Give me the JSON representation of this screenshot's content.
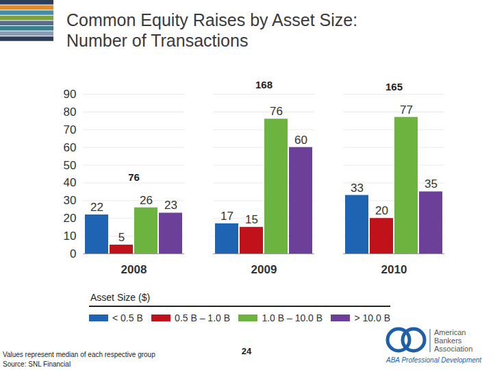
{
  "chart_data": {
    "type": "bar",
    "title": "Common Equity Raises by Asset Size:\nNumber of Transactions",
    "categories": [
      "2008",
      "2009",
      "2010"
    ],
    "series": [
      {
        "name": "< 0.5 B",
        "color": "#1f63b3",
        "values": [
          22,
          17,
          33
        ]
      },
      {
        "name": "0.5 B – 1.0 B",
        "color": "#c1121c",
        "values": [
          5,
          15,
          20
        ]
      },
      {
        "name": "1.0 B – 10.0 B",
        "color": "#6db33f",
        "values": [
          26,
          76,
          77
        ]
      },
      {
        "name": "> 10.0 B",
        "color": "#6c3f98",
        "values": [
          23,
          60,
          35
        ]
      }
    ],
    "ylim": [
      0,
      90
    ],
    "yticks": [
      0,
      10,
      20,
      30,
      40,
      50,
      60,
      70,
      80,
      90
    ],
    "grid": true,
    "data_labels": true,
    "legend": "bottom",
    "legend_title": "Asset Size ($)",
    "annotations": [
      {
        "text": "76",
        "category": "2008",
        "y": 43
      },
      {
        "text": "168",
        "category": "2009",
        "y": 95
      },
      {
        "text": "165",
        "category": "2010",
        "y": 94
      }
    ],
    "footnote": "Values represent median of each respective group",
    "source": "Source: SNL Financial",
    "page_number": "24",
    "logo": {
      "lines": [
        "American",
        "Bankers",
        "Association"
      ],
      "tagline": "ABA Professional Development"
    }
  }
}
